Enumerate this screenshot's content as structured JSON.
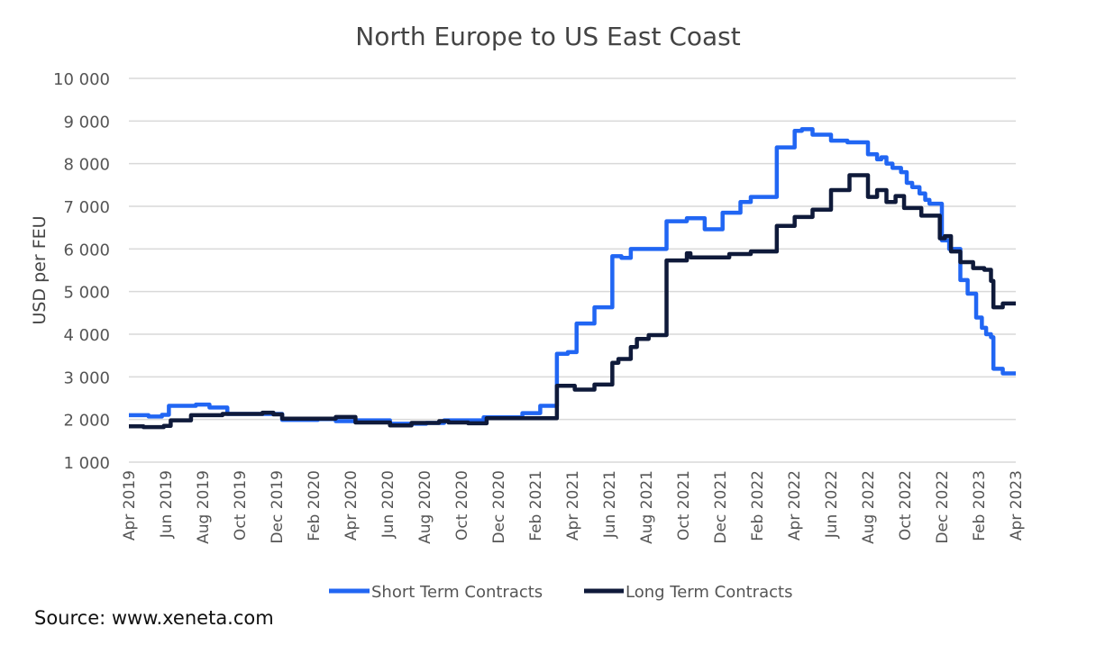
{
  "chart_data": {
    "type": "line",
    "title": "North Europe to US East Coast",
    "ylabel": "USD per FEU",
    "xlabel": "",
    "ylim": [
      1000,
      10000
    ],
    "xlim": [
      "2019-04-01",
      "2023-04-01"
    ],
    "yticks": [
      {
        "value": 1000,
        "label": "1 000"
      },
      {
        "value": 2000,
        "label": "2 000"
      },
      {
        "value": 3000,
        "label": "3 000"
      },
      {
        "value": 4000,
        "label": "4 000"
      },
      {
        "value": 5000,
        "label": "5 000"
      },
      {
        "value": 6000,
        "label": "6 000"
      },
      {
        "value": 7000,
        "label": "7 000"
      },
      {
        "value": 8000,
        "label": "8 000"
      },
      {
        "value": 9000,
        "label": "9 000"
      },
      {
        "value": 10000,
        "label": "10 000"
      }
    ],
    "xticks": [
      {
        "date": "2019-04-01",
        "label": "Apr 2019"
      },
      {
        "date": "2019-06-01",
        "label": "Jun 2019"
      },
      {
        "date": "2019-08-01",
        "label": "Aug 2019"
      },
      {
        "date": "2019-10-01",
        "label": "Oct 2019"
      },
      {
        "date": "2019-12-01",
        "label": "Dec 2019"
      },
      {
        "date": "2020-02-01",
        "label": "Feb 2020"
      },
      {
        "date": "2020-04-01",
        "label": "Apr 2020"
      },
      {
        "date": "2020-06-01",
        "label": "Jun 2020"
      },
      {
        "date": "2020-08-01",
        "label": "Aug 2020"
      },
      {
        "date": "2020-10-01",
        "label": "Oct 2020"
      },
      {
        "date": "2020-12-01",
        "label": "Dec 2020"
      },
      {
        "date": "2021-02-01",
        "label": "Feb 2021"
      },
      {
        "date": "2021-04-01",
        "label": "Apr 2021"
      },
      {
        "date": "2021-06-01",
        "label": "Jun 2021"
      },
      {
        "date": "2021-08-01",
        "label": "Aug 2021"
      },
      {
        "date": "2021-10-01",
        "label": "Oct 2021"
      },
      {
        "date": "2021-12-01",
        "label": "Dec 2021"
      },
      {
        "date": "2022-02-01",
        "label": "Feb 2022"
      },
      {
        "date": "2022-04-01",
        "label": "Apr 2022"
      },
      {
        "date": "2022-06-01",
        "label": "Jun 2022"
      },
      {
        "date": "2022-08-01",
        "label": "Aug 2022"
      },
      {
        "date": "2022-10-01",
        "label": "Oct 2022"
      },
      {
        "date": "2022-12-01",
        "label": "Dec 2022"
      },
      {
        "date": "2023-02-01",
        "label": "Feb 2023"
      },
      {
        "date": "2023-04-01",
        "label": "Apr 2023"
      }
    ],
    "grid": "horizontal",
    "legend_position": "bottom",
    "series": [
      {
        "name": "Short Term Contracts",
        "color": "#2166f3",
        "step": true,
        "points": [
          [
            "2019-04-01",
            2100
          ],
          [
            "2019-05-03",
            2070
          ],
          [
            "2019-05-25",
            2110
          ],
          [
            "2019-06-06",
            2320
          ],
          [
            "2019-07-20",
            2350
          ],
          [
            "2019-08-12",
            2280
          ],
          [
            "2019-09-11",
            2130
          ],
          [
            "2019-12-10",
            1990
          ],
          [
            "2020-02-08",
            2010
          ],
          [
            "2020-03-07",
            1960
          ],
          [
            "2020-04-07",
            1980
          ],
          [
            "2020-06-05",
            1900
          ],
          [
            "2020-08-04",
            1920
          ],
          [
            "2020-09-03",
            1980
          ],
          [
            "2020-11-07",
            2050
          ],
          [
            "2021-01-10",
            2150
          ],
          [
            "2021-02-09",
            2320
          ],
          [
            "2021-03-06",
            3540
          ],
          [
            "2021-03-24",
            3580
          ],
          [
            "2021-04-08",
            4250
          ],
          [
            "2021-05-07",
            4630
          ],
          [
            "2021-06-06",
            5830
          ],
          [
            "2021-06-21",
            5790
          ],
          [
            "2021-07-06",
            6000
          ],
          [
            "2021-09-04",
            6650
          ],
          [
            "2021-10-07",
            6720
          ],
          [
            "2021-11-06",
            6460
          ],
          [
            "2021-12-05",
            6850
          ],
          [
            "2022-01-04",
            7100
          ],
          [
            "2022-01-21",
            7220
          ],
          [
            "2022-03-03",
            8380
          ],
          [
            "2022-04-02",
            8770
          ],
          [
            "2022-04-14",
            8810
          ],
          [
            "2022-05-01",
            8680
          ],
          [
            "2022-06-01",
            8540
          ],
          [
            "2022-06-28",
            8500
          ],
          [
            "2022-08-01",
            8220
          ],
          [
            "2022-08-16",
            8100
          ],
          [
            "2022-08-23",
            8150
          ],
          [
            "2022-09-01",
            8000
          ],
          [
            "2022-09-11",
            7900
          ],
          [
            "2022-09-25",
            7800
          ],
          [
            "2022-10-04",
            7550
          ],
          [
            "2022-10-13",
            7450
          ],
          [
            "2022-10-25",
            7300
          ],
          [
            "2022-11-04",
            7150
          ],
          [
            "2022-11-11",
            7060
          ],
          [
            "2022-12-01",
            6200
          ],
          [
            "2022-12-13",
            6000
          ],
          [
            "2023-01-01",
            5270
          ],
          [
            "2023-01-13",
            4950
          ],
          [
            "2023-01-27",
            4390
          ],
          [
            "2023-02-06",
            4150
          ],
          [
            "2023-02-13",
            4000
          ],
          [
            "2023-02-21",
            3930
          ],
          [
            "2023-02-25",
            3190
          ],
          [
            "2023-03-10",
            3080
          ],
          [
            "2023-04-01",
            3080
          ]
        ]
      },
      {
        "name": "Long Term Contracts",
        "color": "#0f1a3a",
        "step": true,
        "points": [
          [
            "2019-04-01",
            1840
          ],
          [
            "2019-04-25",
            1820
          ],
          [
            "2019-05-28",
            1850
          ],
          [
            "2019-06-09",
            1980
          ],
          [
            "2019-07-12",
            2100
          ],
          [
            "2019-09-03",
            2130
          ],
          [
            "2019-11-08",
            2160
          ],
          [
            "2019-11-26",
            2120
          ],
          [
            "2019-12-10",
            2020
          ],
          [
            "2020-03-07",
            2060
          ],
          [
            "2020-04-09",
            1930
          ],
          [
            "2020-06-05",
            1860
          ],
          [
            "2020-07-10",
            1920
          ],
          [
            "2020-08-25",
            1960
          ],
          [
            "2020-09-10",
            1930
          ],
          [
            "2020-10-12",
            1910
          ],
          [
            "2020-11-12",
            2030
          ],
          [
            "2021-03-06",
            2790
          ],
          [
            "2021-04-05",
            2700
          ],
          [
            "2021-05-07",
            2820
          ],
          [
            "2021-06-06",
            3330
          ],
          [
            "2021-06-16",
            3420
          ],
          [
            "2021-07-06",
            3700
          ],
          [
            "2021-07-16",
            3890
          ],
          [
            "2021-08-05",
            3980
          ],
          [
            "2021-09-04",
            5730
          ],
          [
            "2021-10-07",
            5900
          ],
          [
            "2021-10-13",
            5800
          ],
          [
            "2021-12-16",
            5880
          ],
          [
            "2022-01-21",
            5940
          ],
          [
            "2022-03-03",
            6540
          ],
          [
            "2022-04-02",
            6750
          ],
          [
            "2022-05-01",
            6920
          ],
          [
            "2022-06-01",
            7380
          ],
          [
            "2022-07-01",
            7730
          ],
          [
            "2022-08-01",
            7220
          ],
          [
            "2022-08-16",
            7380
          ],
          [
            "2022-09-01",
            7100
          ],
          [
            "2022-09-16",
            7240
          ],
          [
            "2022-09-30",
            6960
          ],
          [
            "2022-10-28",
            6780
          ],
          [
            "2022-11-28",
            6250
          ],
          [
            "2022-12-06",
            6300
          ],
          [
            "2022-12-16",
            5940
          ],
          [
            "2023-01-01",
            5690
          ],
          [
            "2023-01-22",
            5550
          ],
          [
            "2023-02-10",
            5510
          ],
          [
            "2023-02-21",
            5250
          ],
          [
            "2023-02-25",
            4630
          ],
          [
            "2023-03-10",
            4720
          ],
          [
            "2023-04-01",
            4720
          ]
        ]
      }
    ]
  },
  "source": "Source: www.xeneta.com"
}
